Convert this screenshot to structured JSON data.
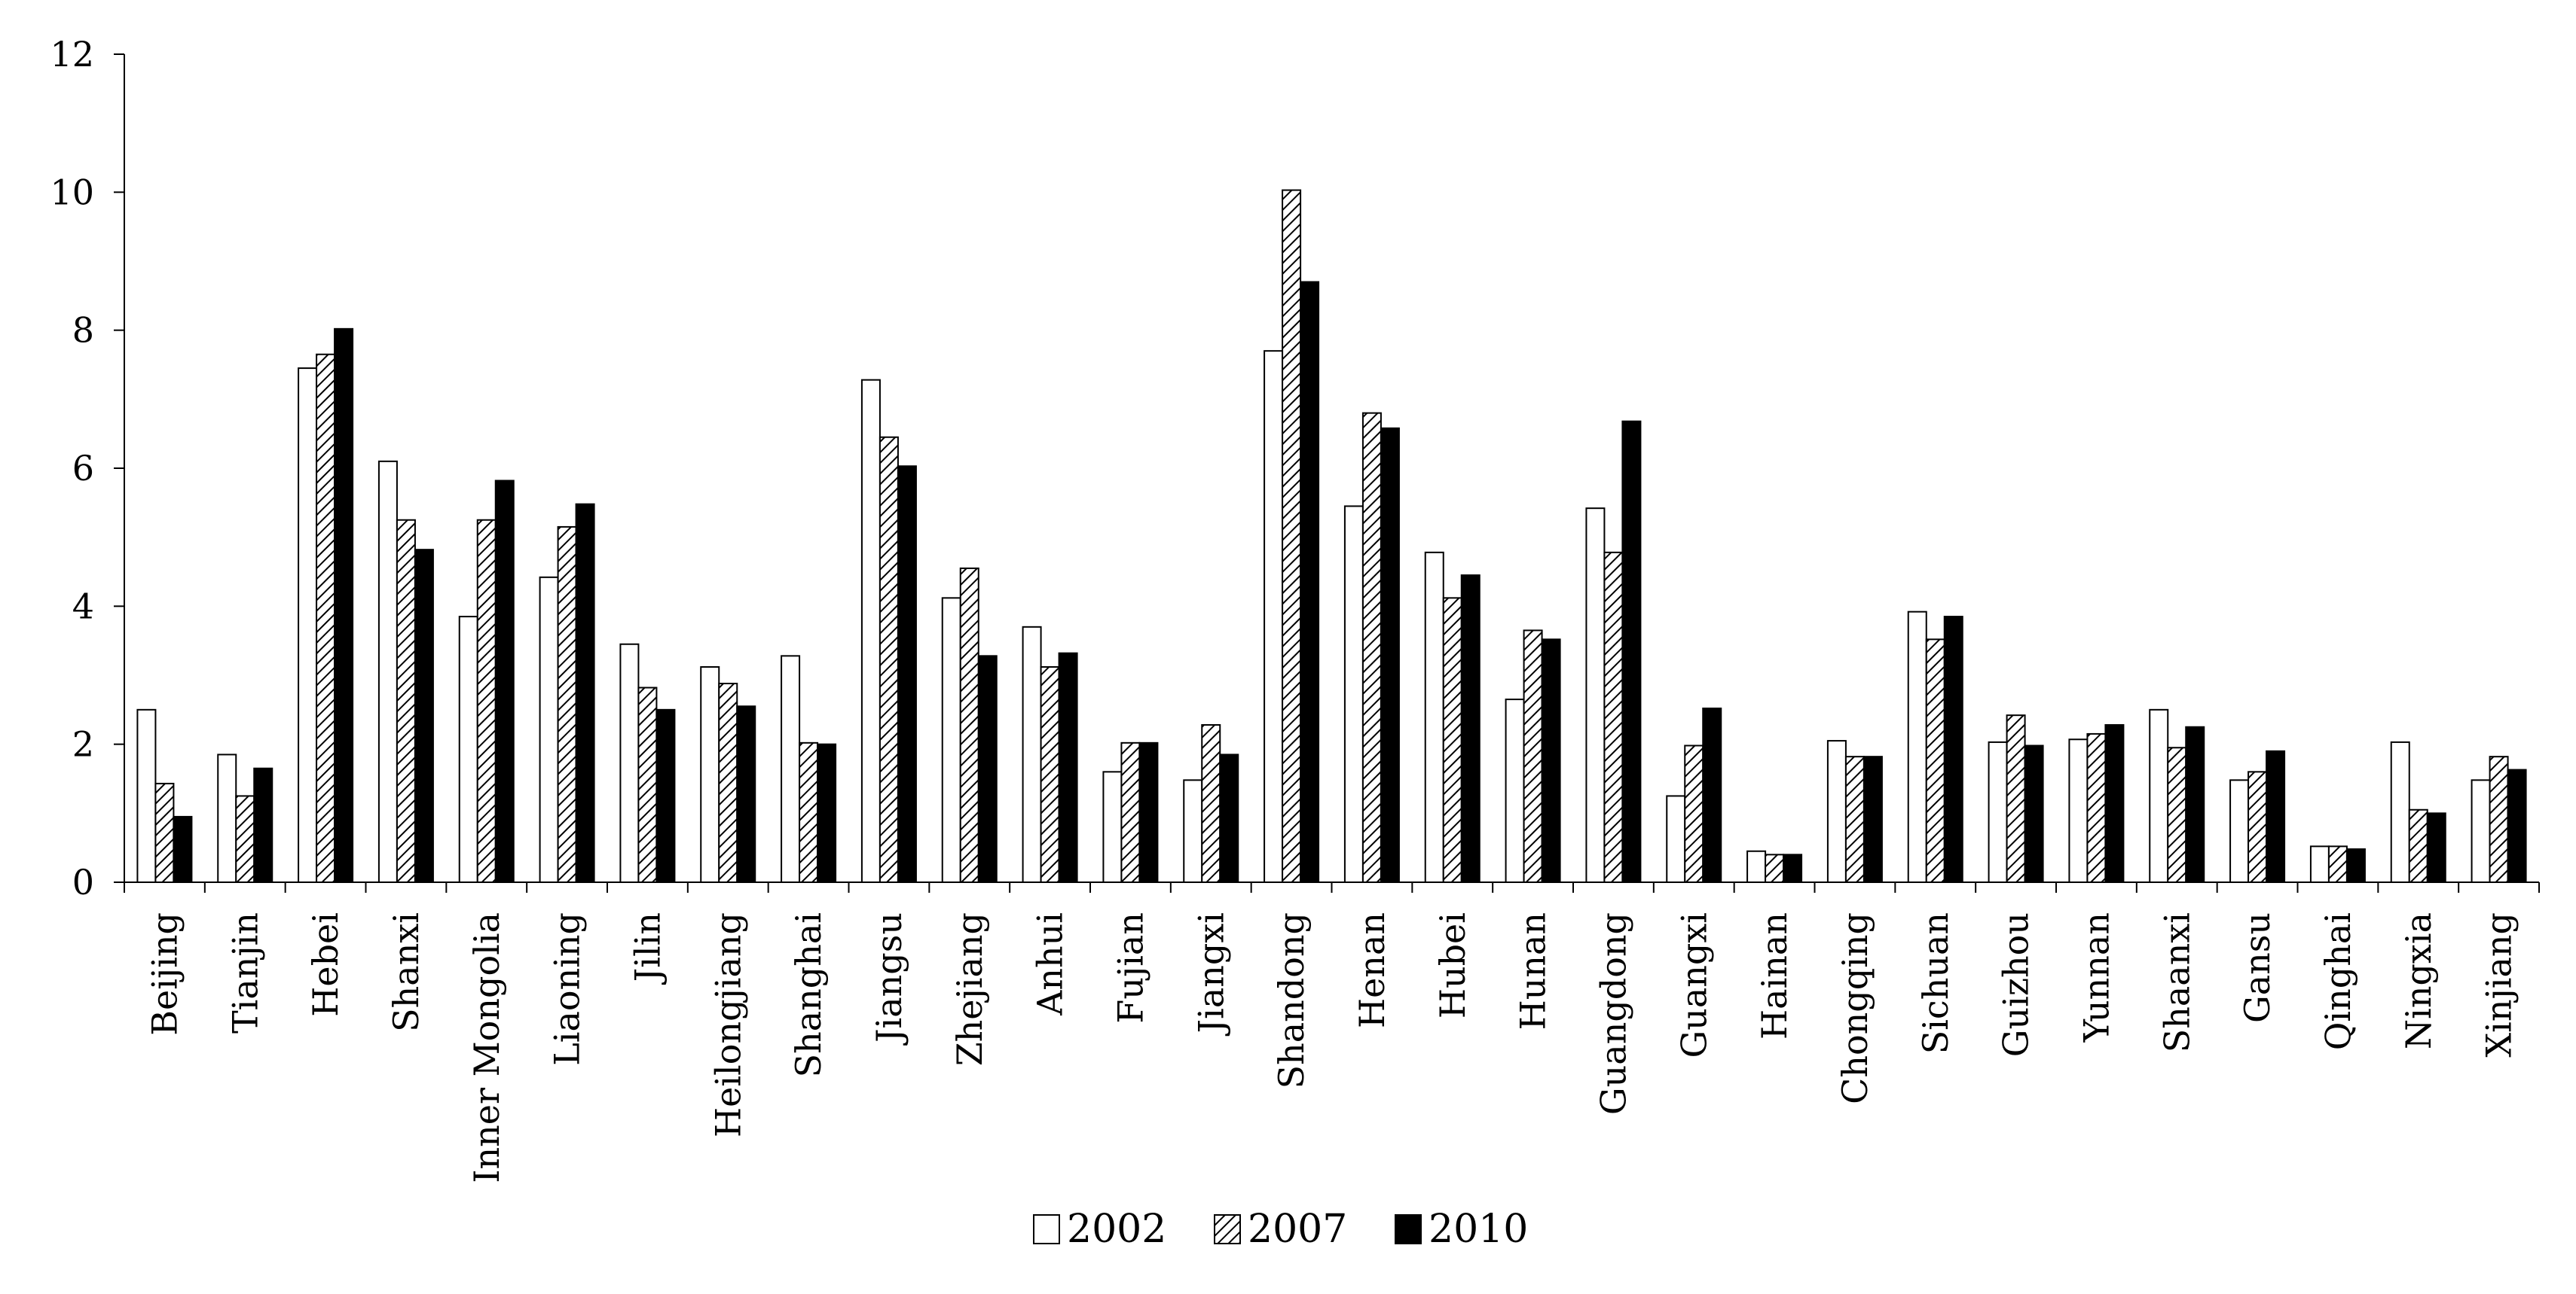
{
  "chart_data": {
    "type": "bar",
    "title": "",
    "xlabel": "",
    "ylabel": "",
    "ylim": [
      0,
      12
    ],
    "yticks": [
      0,
      2,
      4,
      6,
      8,
      10,
      12
    ],
    "grid": false,
    "legend_position": "bottom",
    "categories": [
      "Beijing",
      "Tianjin",
      "Hebei",
      "Shanxi",
      "Inner Mongolia",
      "Liaoning",
      "Jilin",
      "Heilongjiang",
      "Shanghai",
      "Jiangsu",
      "Zhejiang",
      "Anhui",
      "Fujian",
      "Jiangxi",
      "Shandong",
      "Henan",
      "Hubei",
      "Hunan",
      "Guangdong",
      "Guangxi",
      "Hainan",
      "Chongqing",
      "Sichuan",
      "Guizhou",
      "Yunnan",
      "Shaanxi",
      "Gansu",
      "Qinghai",
      "Ningxia",
      "Xinjiang"
    ],
    "series": [
      {
        "name": "2002",
        "fill": "white",
        "values": [
          2.5,
          1.85,
          7.45,
          6.1,
          3.85,
          4.42,
          3.45,
          3.12,
          3.28,
          7.28,
          4.12,
          3.7,
          1.6,
          1.48,
          7.7,
          5.45,
          4.78,
          2.65,
          5.42,
          1.25,
          0.45,
          2.05,
          3.92,
          2.03,
          2.07,
          2.5,
          1.48,
          0.52,
          2.03,
          1.48
        ]
      },
      {
        "name": "2007",
        "fill": "hatched",
        "values": [
          1.43,
          1.25,
          7.65,
          5.25,
          5.25,
          5.15,
          2.82,
          2.88,
          2.02,
          6.45,
          4.55,
          3.12,
          2.02,
          2.28,
          10.03,
          6.8,
          4.12,
          3.65,
          4.78,
          1.98,
          0.4,
          1.82,
          3.52,
          2.42,
          2.15,
          1.95,
          1.6,
          0.52,
          1.05,
          1.82
        ]
      },
      {
        "name": "2010",
        "fill": "black",
        "values": [
          0.95,
          1.65,
          8.02,
          4.82,
          5.82,
          5.48,
          2.5,
          2.55,
          2.0,
          6.03,
          3.28,
          3.32,
          2.02,
          1.85,
          8.7,
          6.58,
          4.45,
          3.52,
          6.68,
          2.52,
          0.4,
          1.82,
          3.85,
          1.98,
          2.28,
          2.25,
          1.9,
          0.48,
          1.0,
          1.63
        ]
      }
    ]
  }
}
